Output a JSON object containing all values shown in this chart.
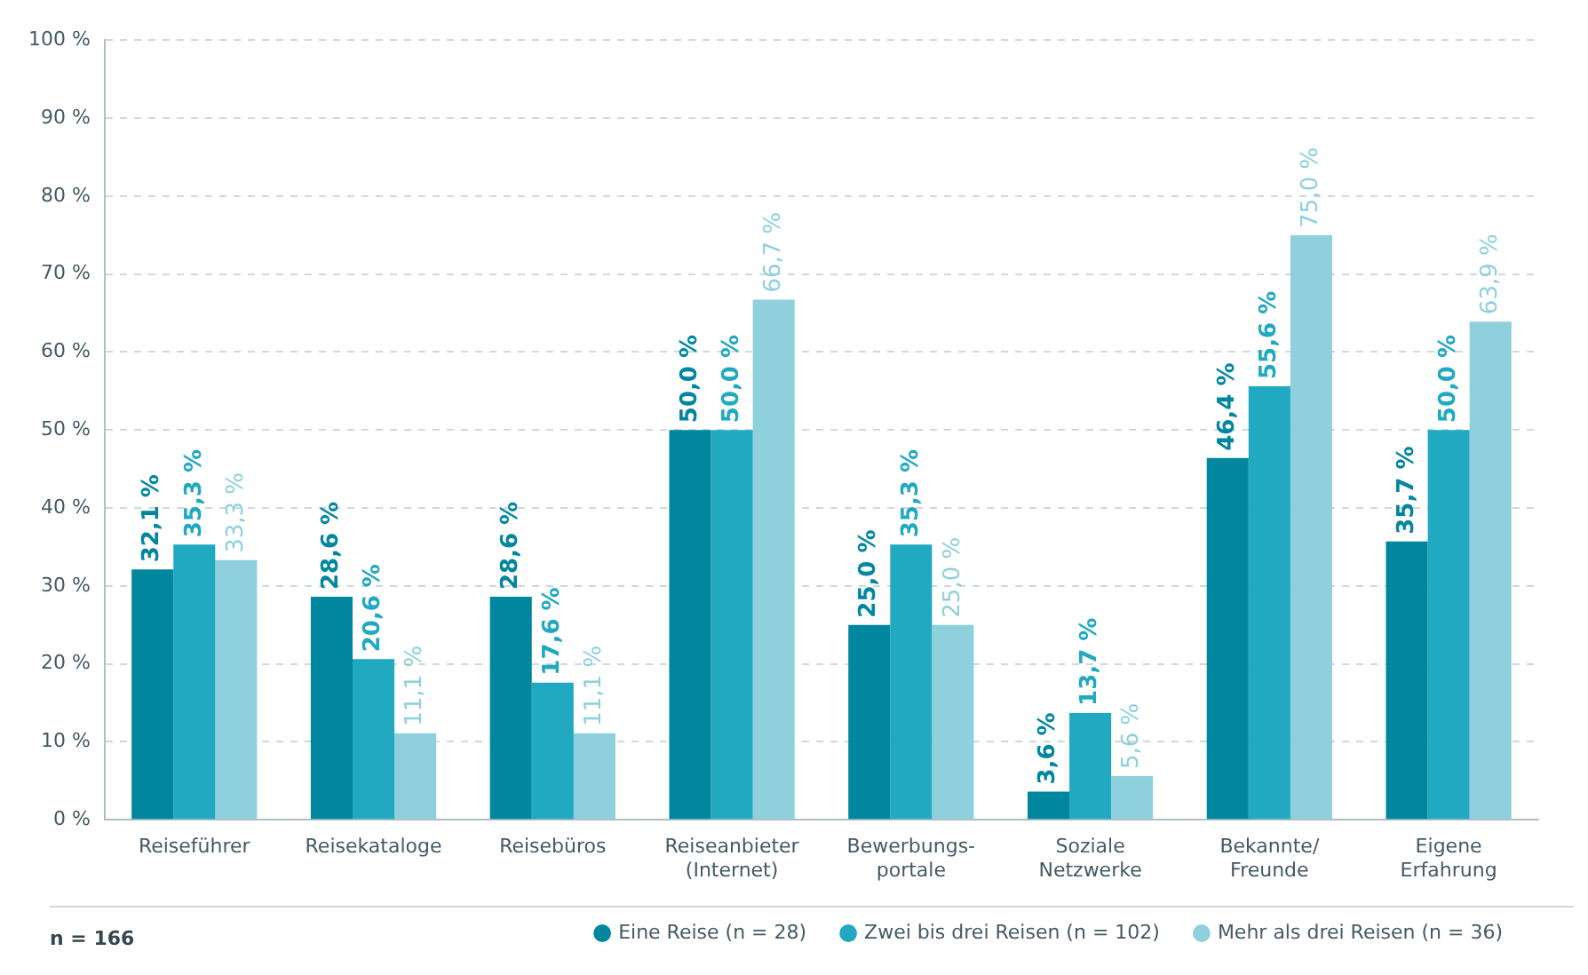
{
  "chart_data": {
    "type": "bar",
    "categories": [
      "Reiseführer",
      "Reisekataloge",
      "Reisebüros",
      "Reiseanbieter\n(Internet)",
      "Bewerbungs-\nportale",
      "Soziale\nNetzwerke",
      "Bekannte/\nFreunde",
      "Eigene\nErfahrung"
    ],
    "series": [
      {
        "name": "Eine Reise (n = 28)",
        "color": "#00879f",
        "values": [
          32.1,
          28.6,
          28.6,
          50.0,
          25.0,
          3.6,
          46.4,
          35.7
        ],
        "value_labels": [
          "32,1 %",
          "28,6 %",
          "28,6 %",
          "50,0 %",
          "25,0 %",
          "3,6 %",
          "46,4 %",
          "35,7 %"
        ]
      },
      {
        "name": "Zwei bis drei Reisen (n = 102)",
        "color": "#20a9c0",
        "values": [
          35.3,
          20.6,
          17.6,
          50.0,
          35.3,
          13.7,
          55.6,
          50.0
        ],
        "value_labels": [
          "35,3 %",
          "20,6 %",
          "17,6 %",
          "50,0 %",
          "35,3 %",
          "13,7 %",
          "55,6 %",
          "50,0 %"
        ]
      },
      {
        "name": "Mehr als drei Reisen (n = 36)",
        "color": "#8ed0dc",
        "values": [
          33.3,
          11.1,
          11.1,
          66.7,
          25.0,
          5.6,
          75.0,
          63.9
        ],
        "value_labels": [
          "33,3 %",
          "11,1 %",
          "11,1 %",
          "66,7 %",
          "25,0 %",
          "5,6 %",
          "75,0 %",
          "63,9 %"
        ]
      }
    ],
    "ylim": [
      0,
      100
    ],
    "yticks": [
      {
        "value": 0,
        "label": "0 %"
      },
      {
        "value": 10,
        "label": "10 %"
      },
      {
        "value": 20,
        "label": "20 %"
      },
      {
        "value": 30,
        "label": "30 %"
      },
      {
        "value": 40,
        "label": "40 %"
      },
      {
        "value": 50,
        "label": "50 %"
      },
      {
        "value": 60,
        "label": "60 %"
      },
      {
        "value": 70,
        "label": "70 %"
      },
      {
        "value": 80,
        "label": "80 %"
      },
      {
        "value": 90,
        "label": "90 %"
      },
      {
        "value": 100,
        "label": "100 %"
      }
    ],
    "grid": "y",
    "legend": "bottom right",
    "annotations": [
      "n = 166"
    ]
  }
}
